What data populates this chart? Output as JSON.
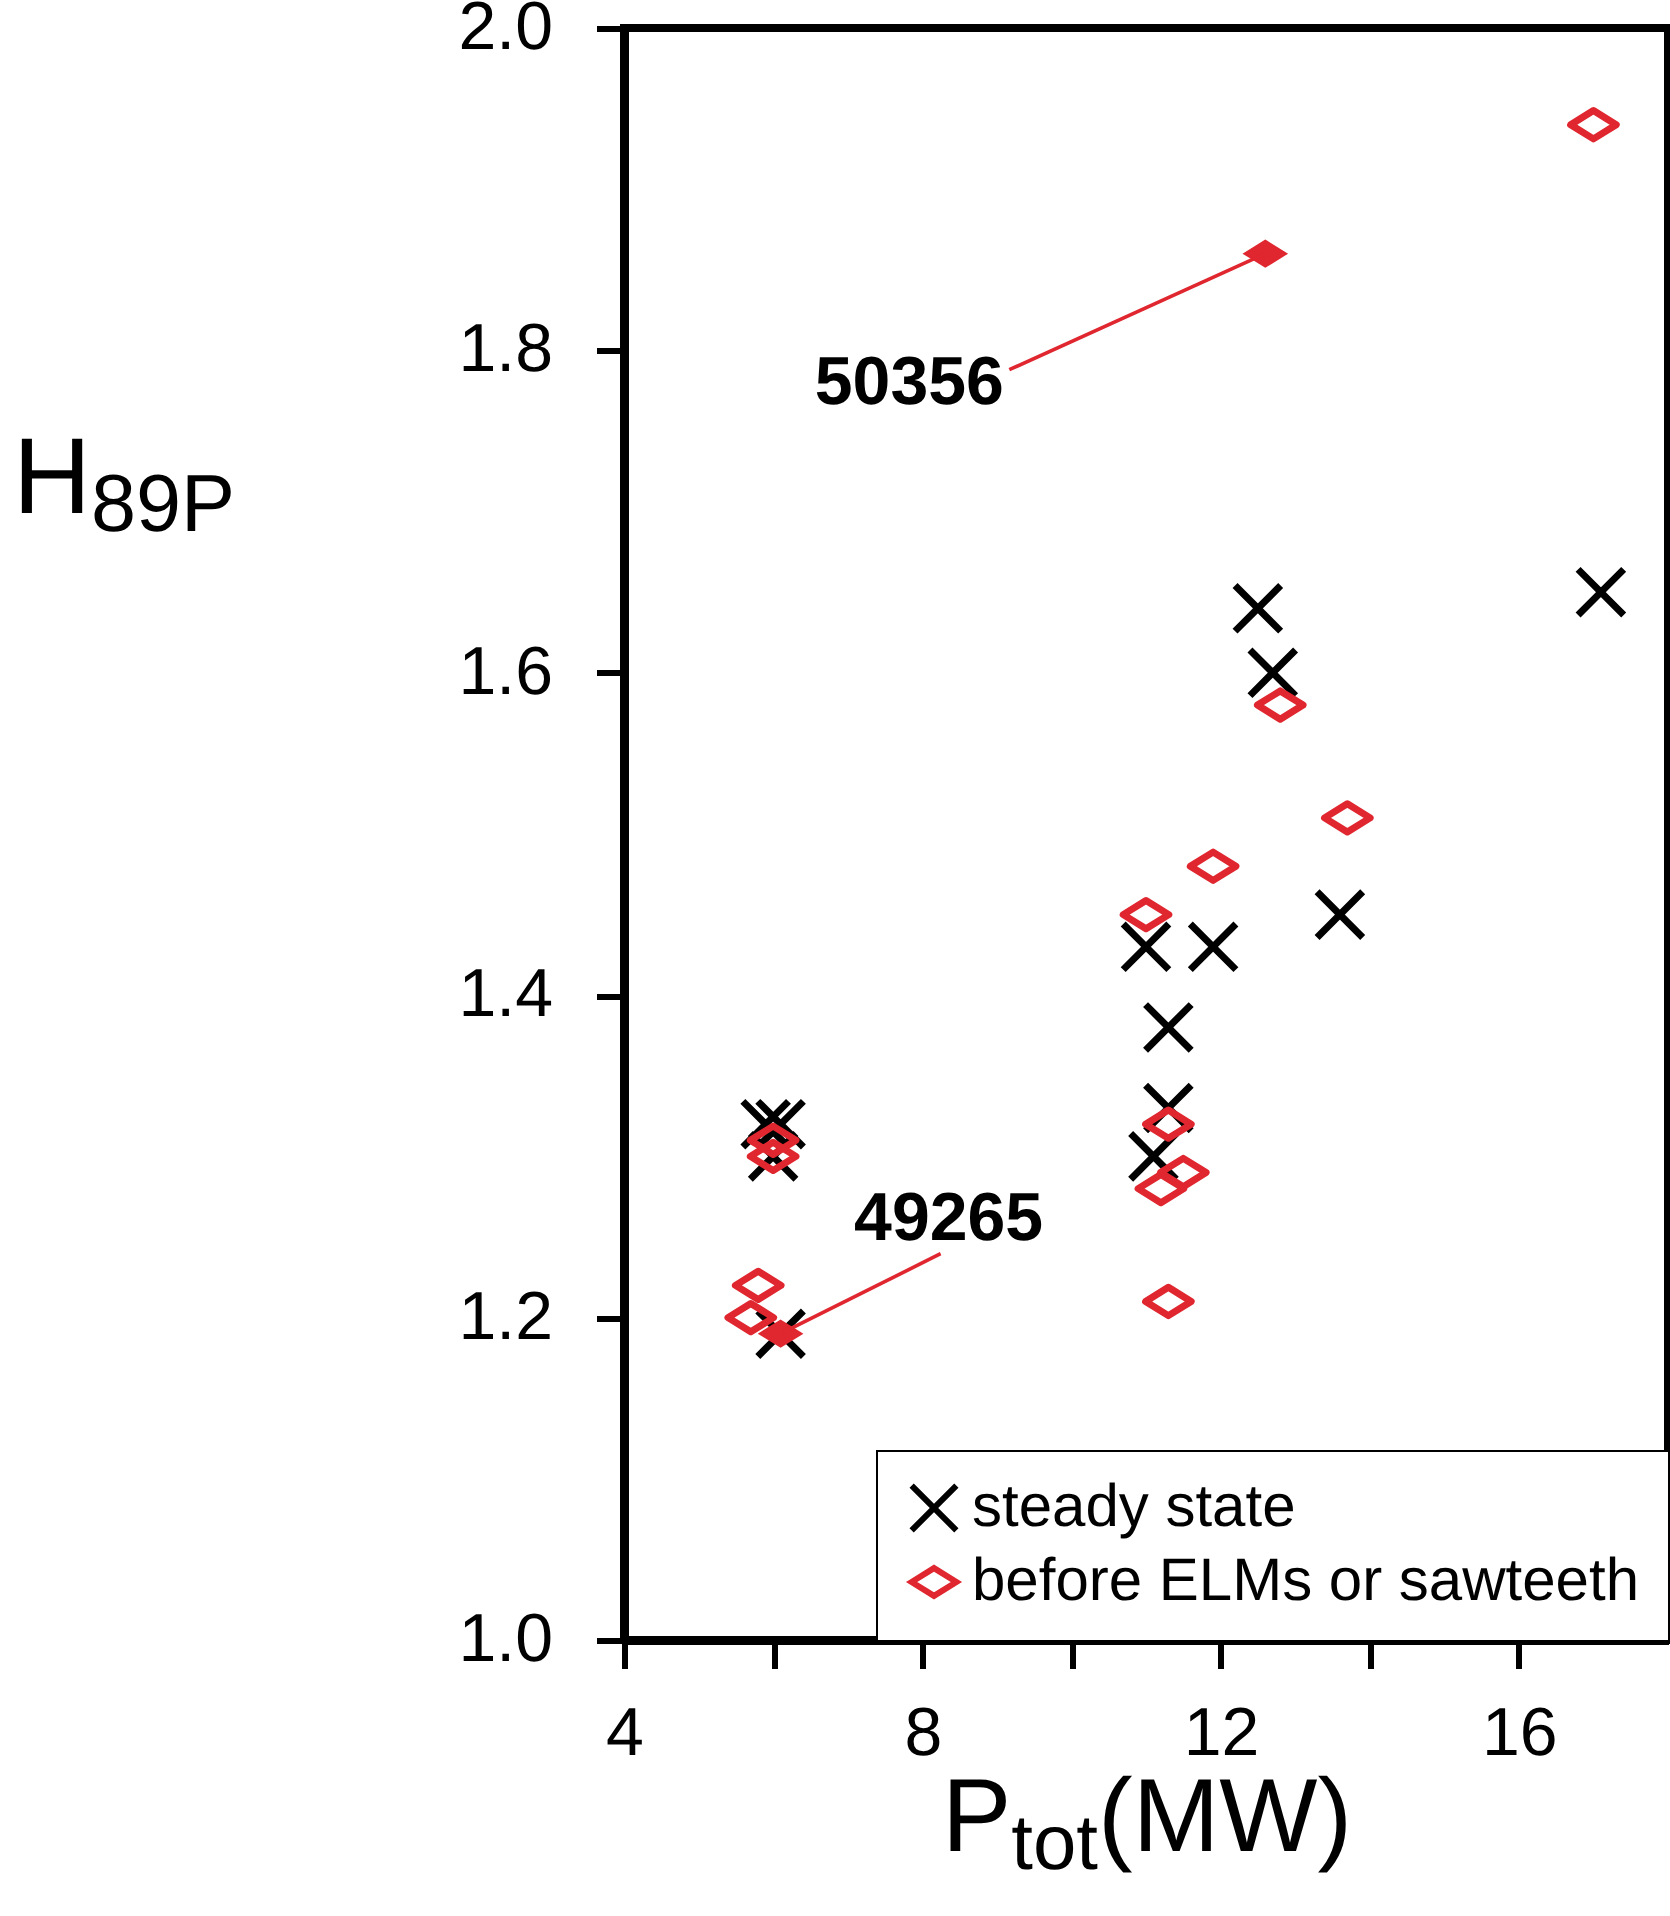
{
  "chart_data": {
    "type": "scatter",
    "xlabel": "P$_{tot}$(MW)",
    "ylabel": "H$_{89P}$",
    "xlim": [
      4,
      18
    ],
    "xticks": [
      4,
      {
        "value": 6,
        "label": null
      },
      8,
      {
        "value": 10,
        "label": null
      },
      12,
      {
        "value": 14,
        "label": null
      },
      16
    ],
    "ylim": [
      1,
      2
    ],
    "yticks": [
      {
        "value": 1,
        "label": "1.0"
      },
      1.2,
      1.4,
      1.6,
      1.8,
      {
        "value": 2,
        "label": "2.0"
      }
    ],
    "legend": "bottom right",
    "grid": false,
    "series": [
      {
        "name": "steady state",
        "color": "#000000",
        "marker": "cross",
        "x": [
          12.5,
          12.7,
          17.1,
          13.6,
          11.0,
          11.9,
          11.3,
          11.3,
          11.1,
          5.9,
          6.1,
          6.0,
          6.1
        ],
        "values": [
          1.64,
          1.6,
          1.65,
          1.45,
          1.43,
          1.43,
          1.38,
          1.33,
          1.3,
          1.32,
          1.32,
          1.3,
          1.19
        ]
      },
      {
        "name": "before ELMs or sawteeth",
        "color": "#e0262f",
        "marker": "diamond",
        "x": [
          17.0,
          12.8,
          13.7,
          11.9,
          11.0,
          11.3,
          11.5,
          11.2,
          11.3,
          5.8,
          5.7,
          6.0,
          6.0
        ],
        "values": [
          1.94,
          1.58,
          1.51,
          1.48,
          1.45,
          1.32,
          1.29,
          1.28,
          1.21,
          1.22,
          1.2,
          1.31,
          1.3
        ]
      },
      {
        "color": "#e0262f",
        "marker": "diamond",
        "x": [
          12.6,
          6.1
        ],
        "values": [
          1.86,
          1.19
        ]
      }
    ],
    "annotations": [
      {
        "text": "50356",
        "x": 12.6,
        "y": 1.86
      },
      {
        "text": "49265",
        "x": 6.1,
        "y": 1.19
      }
    ]
  }
}
